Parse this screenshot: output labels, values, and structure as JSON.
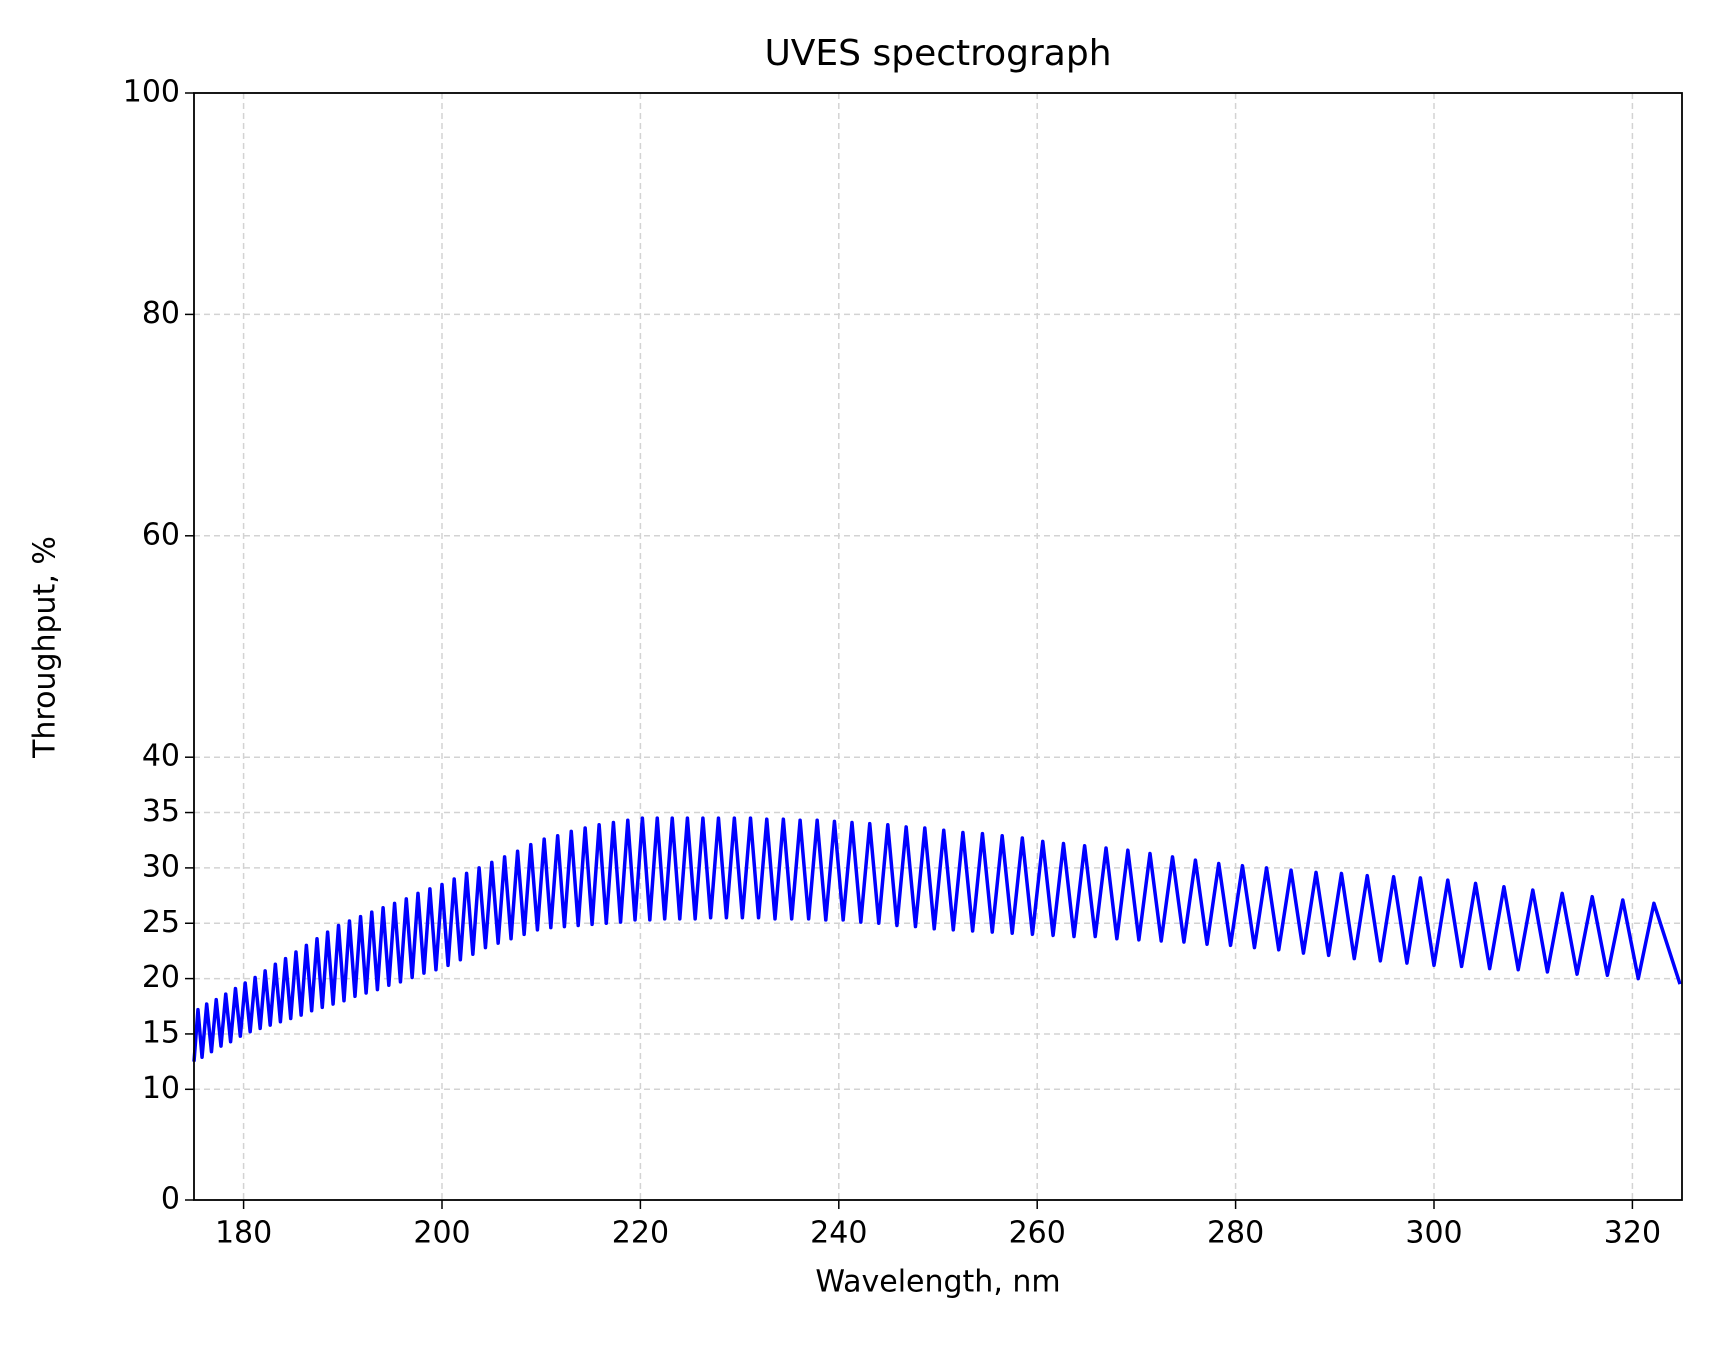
{
  "chart_data": {
    "type": "line",
    "title": "UVES spectrograph",
    "x_label": "Wavelength, nm",
    "y_label": "Throughput, %",
    "color": "#0000ff",
    "grid": true,
    "xlim": [
      175,
      325
    ],
    "ylim": [
      0,
      100
    ],
    "xticks": [
      180,
      200,
      220,
      240,
      260,
      280,
      300,
      320
    ],
    "yticks": [
      0,
      10,
      15,
      20,
      25,
      30,
      35,
      40,
      60,
      80,
      100
    ],
    "x": [
      175.0,
      175.4,
      175.81,
      176.28,
      176.76,
      177.24,
      177.72,
      178.2,
      178.69,
      179.18,
      179.67,
      180.16,
      180.66,
      181.16,
      181.67,
      182.17,
      182.68,
      183.2,
      183.71,
      184.23,
      184.75,
      185.28,
      185.8,
      186.33,
      186.86,
      187.4,
      187.93,
      188.47,
      189.02,
      189.57,
      190.12,
      190.67,
      191.23,
      191.79,
      192.35,
      192.92,
      193.49,
      194.06,
      194.64,
      195.22,
      195.81,
      196.4,
      196.99,
      197.58,
      198.18,
      198.78,
      199.39,
      200.0,
      200.61,
      201.23,
      201.85,
      202.48,
      203.11,
      203.74,
      204.38,
      205.02,
      205.66,
      206.31,
      206.96,
      207.62,
      208.28,
      208.95,
      209.62,
      210.3,
      210.97,
      211.66,
      212.34,
      213.03,
      213.73,
      214.43,
      215.13,
      215.84,
      216.56,
      217.28,
      218.0,
      218.73,
      219.46,
      220.2,
      220.95,
      221.7,
      222.45,
      223.21,
      223.97,
      224.74,
      225.52,
      226.3,
      227.08,
      227.87,
      228.67,
      229.47,
      230.28,
      231.1,
      231.91,
      232.74,
      233.57,
      234.41,
      235.25,
      236.1,
      236.96,
      237.82,
      238.69,
      239.56,
      240.44,
      241.33,
      242.22,
      243.12,
      244.03,
      244.94,
      245.86,
      246.79,
      247.73,
      248.67,
      249.62,
      250.58,
      251.54,
      252.51,
      253.49,
      254.48,
      255.47,
      256.47,
      257.48,
      258.5,
      259.52,
      260.56,
      261.6,
      262.65,
      263.71,
      264.78,
      265.85,
      266.94,
      268.03,
      269.14,
      270.25,
      271.37,
      272.5,
      273.64,
      274.79,
      275.95,
      277.12,
      278.3,
      279.49,
      280.69,
      281.9,
      283.12,
      284.35,
      285.59,
      286.84,
      288.11,
      289.38,
      290.67,
      291.96,
      293.27,
      294.59,
      295.93,
      297.27,
      298.63,
      300.0,
      301.39,
      302.78,
      304.19,
      305.61,
      307.05,
      308.49,
      309.96,
      311.43,
      312.92,
      314.42,
      315.95,
      317.48,
      319.03,
      320.59,
      322.17,
      324.8
    ],
    "values": [
      12.5,
      17.2,
      12.9,
      17.7,
      13.4,
      18.1,
      13.9,
      18.6,
      14.3,
      19.1,
      14.8,
      19.6,
      15.2,
      20.1,
      15.5,
      20.7,
      15.8,
      21.3,
      16.1,
      21.8,
      16.4,
      22.4,
      16.7,
      23.0,
      17.1,
      23.6,
      17.4,
      24.2,
      17.7,
      24.8,
      18.0,
      25.2,
      18.4,
      25.6,
      18.7,
      26.0,
      19.0,
      26.4,
      19.4,
      26.8,
      19.7,
      27.2,
      20.1,
      27.7,
      20.5,
      28.1,
      20.8,
      28.5,
      21.2,
      29.0,
      21.7,
      29.5,
      22.2,
      30.0,
      22.8,
      30.5,
      23.2,
      31.0,
      23.6,
      31.5,
      24.0,
      32.1,
      24.4,
      32.6,
      24.6,
      32.9,
      24.7,
      33.3,
      24.8,
      33.6,
      24.9,
      33.9,
      25.0,
      34.1,
      25.1,
      34.3,
      25.3,
      34.5,
      25.3,
      34.5,
      25.4,
      34.5,
      25.4,
      34.5,
      25.4,
      34.5,
      25.5,
      34.5,
      25.5,
      34.5,
      25.5,
      34.5,
      25.5,
      34.4,
      25.4,
      34.4,
      25.4,
      34.3,
      25.4,
      34.3,
      25.3,
      34.2,
      25.3,
      34.1,
      25.1,
      34.0,
      25.0,
      33.9,
      24.8,
      33.7,
      24.7,
      33.6,
      24.5,
      33.4,
      24.4,
      33.2,
      24.3,
      33.1,
      24.2,
      32.9,
      24.1,
      32.7,
      24.0,
      32.4,
      23.9,
      32.2,
      23.8,
      32.0,
      23.8,
      31.8,
      23.6,
      31.6,
      23.5,
      31.3,
      23.4,
      31.0,
      23.3,
      30.7,
      23.1,
      30.4,
      23.0,
      30.2,
      22.8,
      30.0,
      22.6,
      29.8,
      22.3,
      29.6,
      22.1,
      29.5,
      21.8,
      29.3,
      21.6,
      29.2,
      21.4,
      29.1,
      21.2,
      28.9,
      21.1,
      28.6,
      20.9,
      28.3,
      20.8,
      28.0,
      20.6,
      27.7,
      20.4,
      27.4,
      20.3,
      27.1,
      20.0,
      26.8,
      19.5
    ]
  }
}
